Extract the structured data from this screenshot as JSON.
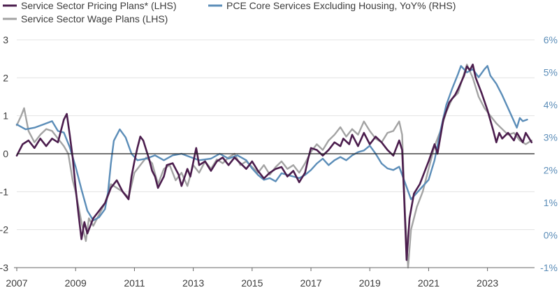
{
  "chart_data": {
    "type": "line",
    "title": "",
    "legend": [
      {
        "label": "Service Sector Pricing Plans* (LHS)",
        "color": "#4b1d4d"
      },
      {
        "label": "PCE Core Services Excluding Housing, YoY% (RHS)",
        "color": "#5b8db8"
      },
      {
        "label": "Service Sector Wage Plans (LHS)",
        "color": "#a3a3a3"
      }
    ],
    "x_ticks": [
      "2007",
      "2009",
      "2011",
      "2013",
      "2015",
      "2017",
      "2019",
      "2021",
      "2023"
    ],
    "y_left": {
      "ticks": [
        "3",
        "2",
        "1",
        "0",
        "-1",
        "-2",
        "-3"
      ],
      "range": [
        -3,
        3
      ],
      "color": "#3b3b3b"
    },
    "y_right": {
      "ticks": [
        "6%",
        "5%",
        "4%",
        "3%",
        "2%",
        "1%",
        "0%",
        "-1%"
      ],
      "range": [
        -1,
        6
      ],
      "color": "#5b8db8"
    },
    "x_range": [
      2007,
      2024.6
    ],
    "series": [
      {
        "name": "Service Sector Pricing Plans* (LHS)",
        "axis": "left",
        "color": "#4b1d4d",
        "width": 2.6,
        "points": [
          [
            2007.0,
            -0.05
          ],
          [
            2007.2,
            0.25
          ],
          [
            2007.4,
            0.35
          ],
          [
            2007.6,
            0.15
          ],
          [
            2007.8,
            0.4
          ],
          [
            2008.0,
            0.2
          ],
          [
            2008.2,
            0.4
          ],
          [
            2008.4,
            0.3
          ],
          [
            2008.6,
            0.9
          ],
          [
            2008.7,
            1.05
          ],
          [
            2008.8,
            0.5
          ],
          [
            2008.9,
            -0.1
          ],
          [
            2009.0,
            -0.9
          ],
          [
            2009.1,
            -1.6
          ],
          [
            2009.2,
            -2.25
          ],
          [
            2009.3,
            -1.8
          ],
          [
            2009.4,
            -2.1
          ],
          [
            2009.6,
            -1.7
          ],
          [
            2009.8,
            -1.5
          ],
          [
            2010.0,
            -1.3
          ],
          [
            2010.2,
            -0.9
          ],
          [
            2010.4,
            -0.7
          ],
          [
            2010.6,
            -1.0
          ],
          [
            2010.8,
            -1.2
          ],
          [
            2010.9,
            -0.6
          ],
          [
            2011.0,
            -0.2
          ],
          [
            2011.1,
            0.15
          ],
          [
            2011.2,
            0.45
          ],
          [
            2011.3,
            0.35
          ],
          [
            2011.5,
            -0.15
          ],
          [
            2011.6,
            -0.45
          ],
          [
            2011.7,
            -0.6
          ],
          [
            2011.8,
            -0.9
          ],
          [
            2012.0,
            -0.6
          ],
          [
            2012.1,
            -0.3
          ],
          [
            2012.3,
            -0.25
          ],
          [
            2012.5,
            -0.55
          ],
          [
            2012.6,
            -0.85
          ],
          [
            2012.8,
            -0.4
          ],
          [
            2012.9,
            -0.6
          ],
          [
            2013.1,
            0.15
          ],
          [
            2013.2,
            -0.3
          ],
          [
            2013.4,
            -0.2
          ],
          [
            2013.6,
            -0.45
          ],
          [
            2013.8,
            -0.2
          ],
          [
            2014.0,
            -0.1
          ],
          [
            2014.2,
            -0.3
          ],
          [
            2014.4,
            -0.1
          ],
          [
            2014.6,
            -0.25
          ],
          [
            2014.8,
            -0.4
          ],
          [
            2015.0,
            -0.2
          ],
          [
            2015.2,
            -0.45
          ],
          [
            2015.4,
            -0.65
          ],
          [
            2015.6,
            -0.5
          ],
          [
            2015.8,
            -0.4
          ],
          [
            2016.0,
            -0.35
          ],
          [
            2016.2,
            -0.6
          ],
          [
            2016.4,
            -0.45
          ],
          [
            2016.6,
            -0.75
          ],
          [
            2016.8,
            -0.5
          ],
          [
            2016.9,
            -0.15
          ],
          [
            2017.0,
            0.15
          ],
          [
            2017.2,
            0.1
          ],
          [
            2017.4,
            -0.05
          ],
          [
            2017.6,
            0.1
          ],
          [
            2017.8,
            0.3
          ],
          [
            2018.0,
            0.2
          ],
          [
            2018.1,
            0.4
          ],
          [
            2018.3,
            0.25
          ],
          [
            2018.4,
            0.5
          ],
          [
            2018.6,
            0.2
          ],
          [
            2018.8,
            0.55
          ],
          [
            2019.0,
            0.25
          ],
          [
            2019.2,
            0.45
          ],
          [
            2019.4,
            0.3
          ],
          [
            2019.6,
            0.1
          ],
          [
            2019.8,
            -0.05
          ],
          [
            2020.0,
            0.35
          ],
          [
            2020.1,
            0.1
          ],
          [
            2020.15,
            -0.8
          ],
          [
            2020.2,
            -1.8
          ],
          [
            2020.25,
            -2.8
          ],
          [
            2020.35,
            -1.7
          ],
          [
            2020.5,
            -1.05
          ],
          [
            2020.7,
            -0.8
          ],
          [
            2020.9,
            -0.4
          ],
          [
            2021.0,
            -0.2
          ],
          [
            2021.2,
            0.25
          ],
          [
            2021.3,
            0.0
          ],
          [
            2021.5,
            0.9
          ],
          [
            2021.7,
            1.35
          ],
          [
            2021.9,
            1.55
          ],
          [
            2022.0,
            1.7
          ],
          [
            2022.2,
            2.05
          ],
          [
            2022.3,
            2.3
          ],
          [
            2022.4,
            2.2
          ],
          [
            2022.5,
            2.35
          ],
          [
            2022.6,
            2.0
          ],
          [
            2022.8,
            1.6
          ],
          [
            2023.0,
            1.15
          ],
          [
            2023.2,
            0.6
          ],
          [
            2023.3,
            0.3
          ],
          [
            2023.4,
            0.55
          ],
          [
            2023.5,
            0.4
          ],
          [
            2023.7,
            0.55
          ],
          [
            2023.9,
            0.35
          ],
          [
            2024.0,
            0.55
          ],
          [
            2024.2,
            0.3
          ],
          [
            2024.3,
            0.55
          ],
          [
            2024.5,
            0.3
          ]
        ]
      },
      {
        "name": "PCE Core Services Excluding Housing, YoY% (RHS)",
        "axis": "right",
        "color": "#5b8db8",
        "width": 2.4,
        "points": [
          [
            2007.0,
            3.4
          ],
          [
            2007.3,
            3.25
          ],
          [
            2007.6,
            3.3
          ],
          [
            2007.9,
            3.4
          ],
          [
            2008.2,
            3.5
          ],
          [
            2008.4,
            3.2
          ],
          [
            2008.6,
            3.15
          ],
          [
            2008.8,
            2.7
          ],
          [
            2009.0,
            2.1
          ],
          [
            2009.2,
            1.4
          ],
          [
            2009.4,
            0.75
          ],
          [
            2009.6,
            0.45
          ],
          [
            2009.8,
            0.55
          ],
          [
            2010.0,
            0.8
          ],
          [
            2010.1,
            1.3
          ],
          [
            2010.2,
            2.2
          ],
          [
            2010.3,
            2.9
          ],
          [
            2010.5,
            3.25
          ],
          [
            2010.7,
            3.0
          ],
          [
            2010.9,
            2.5
          ],
          [
            2011.1,
            2.3
          ],
          [
            2011.4,
            2.35
          ],
          [
            2011.7,
            2.45
          ],
          [
            2012.0,
            2.3
          ],
          [
            2012.3,
            2.45
          ],
          [
            2012.6,
            2.5
          ],
          [
            2012.9,
            2.4
          ],
          [
            2013.2,
            2.3
          ],
          [
            2013.6,
            2.35
          ],
          [
            2013.9,
            2.5
          ],
          [
            2014.2,
            2.35
          ],
          [
            2014.5,
            2.45
          ],
          [
            2014.8,
            2.3
          ],
          [
            2015.0,
            2.05
          ],
          [
            2015.2,
            1.85
          ],
          [
            2015.4,
            1.7
          ],
          [
            2015.6,
            1.75
          ],
          [
            2015.8,
            1.65
          ],
          [
            2016.0,
            1.9
          ],
          [
            2016.2,
            1.85
          ],
          [
            2016.4,
            1.8
          ],
          [
            2016.6,
            1.75
          ],
          [
            2016.8,
            1.85
          ],
          [
            2017.0,
            2.0
          ],
          [
            2017.2,
            2.2
          ],
          [
            2017.4,
            2.35
          ],
          [
            2017.6,
            2.15
          ],
          [
            2017.8,
            2.3
          ],
          [
            2018.0,
            2.4
          ],
          [
            2018.2,
            2.3
          ],
          [
            2018.4,
            2.45
          ],
          [
            2018.6,
            2.55
          ],
          [
            2018.8,
            2.6
          ],
          [
            2019.0,
            2.75
          ],
          [
            2019.2,
            2.5
          ],
          [
            2019.4,
            2.2
          ],
          [
            2019.6,
            2.05
          ],
          [
            2019.8,
            2.0
          ],
          [
            2020.0,
            2.1
          ],
          [
            2020.2,
            1.6
          ],
          [
            2020.4,
            1.1
          ],
          [
            2020.6,
            1.3
          ],
          [
            2020.8,
            1.5
          ],
          [
            2021.0,
            1.7
          ],
          [
            2021.2,
            2.3
          ],
          [
            2021.4,
            3.2
          ],
          [
            2021.6,
            4.0
          ],
          [
            2021.8,
            4.5
          ],
          [
            2022.0,
            4.95
          ],
          [
            2022.1,
            5.2
          ],
          [
            2022.3,
            5.0
          ],
          [
            2022.5,
            5.1
          ],
          [
            2022.7,
            4.85
          ],
          [
            2022.9,
            5.1
          ],
          [
            2023.0,
            5.2
          ],
          [
            2023.1,
            4.9
          ],
          [
            2023.3,
            4.65
          ],
          [
            2023.5,
            4.3
          ],
          [
            2023.7,
            3.9
          ],
          [
            2023.9,
            3.5
          ],
          [
            2024.0,
            3.3
          ],
          [
            2024.1,
            3.6
          ],
          [
            2024.2,
            3.5
          ],
          [
            2024.35,
            3.55
          ]
        ]
      },
      {
        "name": "Service Sector Wage Plans (LHS)",
        "axis": "left",
        "color": "#a3a3a3",
        "width": 2.4,
        "points": [
          [
            2007.0,
            0.75
          ],
          [
            2007.15,
            1.0
          ],
          [
            2007.25,
            1.2
          ],
          [
            2007.4,
            0.6
          ],
          [
            2007.6,
            0.3
          ],
          [
            2007.8,
            0.5
          ],
          [
            2008.0,
            0.65
          ],
          [
            2008.2,
            0.6
          ],
          [
            2008.4,
            0.4
          ],
          [
            2008.6,
            0.2
          ],
          [
            2008.75,
            0.0
          ],
          [
            2008.9,
            -0.7
          ],
          [
            2009.0,
            -1.0
          ],
          [
            2009.2,
            -1.8
          ],
          [
            2009.35,
            -2.3
          ],
          [
            2009.45,
            -1.7
          ],
          [
            2009.6,
            -1.9
          ],
          [
            2009.8,
            -1.6
          ],
          [
            2010.0,
            -1.3
          ],
          [
            2010.2,
            -0.8
          ],
          [
            2010.4,
            -0.9
          ],
          [
            2010.6,
            -1.0
          ],
          [
            2010.8,
            -1.15
          ],
          [
            2011.0,
            -0.5
          ],
          [
            2011.2,
            -0.3
          ],
          [
            2011.4,
            -0.1
          ],
          [
            2011.6,
            -0.25
          ],
          [
            2011.8,
            -0.8
          ],
          [
            2012.0,
            -0.4
          ],
          [
            2012.2,
            -0.3
          ],
          [
            2012.4,
            -0.7
          ],
          [
            2012.6,
            -0.5
          ],
          [
            2012.8,
            -0.85
          ],
          [
            2013.0,
            -0.3
          ],
          [
            2013.2,
            -0.5
          ],
          [
            2013.4,
            -0.2
          ],
          [
            2013.6,
            -0.4
          ],
          [
            2013.8,
            -0.15
          ],
          [
            2014.0,
            -0.25
          ],
          [
            2014.2,
            -0.1
          ],
          [
            2014.4,
            0.0
          ],
          [
            2014.6,
            -0.3
          ],
          [
            2014.8,
            -0.2
          ],
          [
            2015.0,
            -0.35
          ],
          [
            2015.2,
            -0.5
          ],
          [
            2015.4,
            -0.3
          ],
          [
            2015.6,
            -0.55
          ],
          [
            2015.8,
            -0.35
          ],
          [
            2016.0,
            -0.2
          ],
          [
            2016.2,
            -0.4
          ],
          [
            2016.4,
            -0.3
          ],
          [
            2016.6,
            -0.5
          ],
          [
            2016.8,
            -0.25
          ],
          [
            2017.0,
            0.05
          ],
          [
            2017.2,
            0.25
          ],
          [
            2017.4,
            0.1
          ],
          [
            2017.6,
            0.35
          ],
          [
            2017.8,
            0.5
          ],
          [
            2018.0,
            0.7
          ],
          [
            2018.2,
            0.45
          ],
          [
            2018.4,
            0.65
          ],
          [
            2018.6,
            0.5
          ],
          [
            2018.8,
            0.85
          ],
          [
            2019.0,
            0.6
          ],
          [
            2019.2,
            0.4
          ],
          [
            2019.4,
            0.3
          ],
          [
            2019.6,
            0.55
          ],
          [
            2019.8,
            0.6
          ],
          [
            2020.0,
            0.85
          ],
          [
            2020.1,
            0.5
          ],
          [
            2020.15,
            -0.5
          ],
          [
            2020.2,
            -1.6
          ],
          [
            2020.3,
            -3.0
          ],
          [
            2020.4,
            -2.0
          ],
          [
            2020.6,
            -1.4
          ],
          [
            2020.8,
            -1.0
          ],
          [
            2021.0,
            -0.4
          ],
          [
            2021.2,
            0.2
          ],
          [
            2021.4,
            0.6
          ],
          [
            2021.6,
            1.1
          ],
          [
            2021.8,
            1.45
          ],
          [
            2022.0,
            1.6
          ],
          [
            2022.2,
            2.1
          ],
          [
            2022.3,
            2.35
          ],
          [
            2022.5,
            2.0
          ],
          [
            2022.7,
            1.5
          ],
          [
            2022.9,
            1.2
          ],
          [
            2023.1,
            1.0
          ],
          [
            2023.3,
            0.8
          ],
          [
            2023.5,
            0.65
          ],
          [
            2023.7,
            0.5
          ],
          [
            2023.9,
            0.55
          ],
          [
            2024.1,
            0.35
          ],
          [
            2024.3,
            0.25
          ],
          [
            2024.5,
            0.35
          ]
        ]
      }
    ]
  }
}
